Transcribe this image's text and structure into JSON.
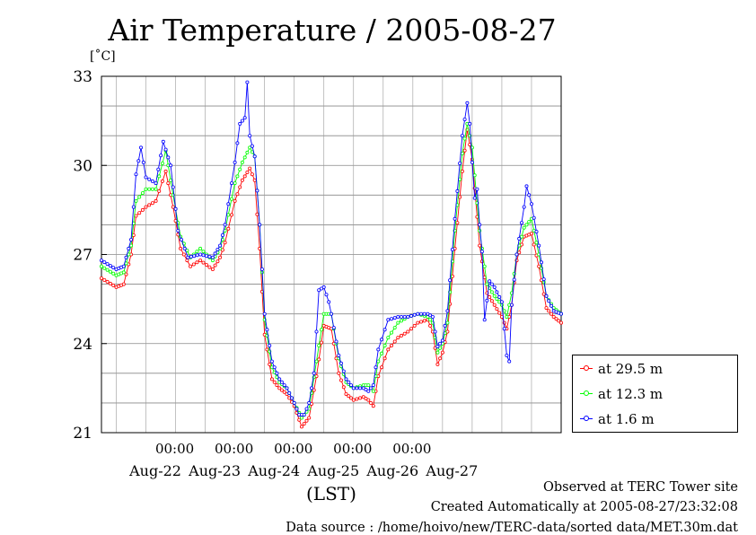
{
  "page": {
    "title": "Air Temperature / 2005-08-27",
    "unit_label": "[˚C]",
    "x_unit_label": "(LST)",
    "footer_line1": "Observed at TERC Tower site",
    "footer_line2": "Created Automatically at 2005-08-27/23:32:08",
    "footer_line3": "Data source : /home/hoivo/new/TERC-data/sorted data/MET.30m.dat"
  },
  "colors": {
    "series_29_5": "#ff0000",
    "series_12_3": "#00ff00",
    "series_1_6": "#0000ff"
  },
  "chart_data": {
    "type": "line",
    "title": "Air Temperature / 2005-08-27",
    "ylabel": "[˚C]",
    "xlabel": "(LST)",
    "ylim": [
      21,
      33
    ],
    "yticks": [
      21,
      24,
      27,
      30,
      33
    ],
    "x_time_tick_labels": [
      "00:00",
      "00:00",
      "00:00",
      "00:00",
      "00:00"
    ],
    "x_date_labels": [
      "Aug-22",
      "Aug-23",
      "Aug-24",
      "Aug-25",
      "Aug-26",
      "Aug-27"
    ],
    "grid": true,
    "legend_position": "bottom-right outside",
    "x_hours_from": "2005-08-21 06:00",
    "x_hours_to": "2005-08-28 00:00",
    "x_unit": "hours",
    "series": [
      {
        "name": "at 29.5 m",
        "color": "#ff0000",
        "points": [
          [
            0,
            26.2
          ],
          [
            6,
            25.9
          ],
          [
            9,
            26.0
          ],
          [
            12,
            27.0
          ],
          [
            14,
            28.3
          ],
          [
            18,
            28.6
          ],
          [
            22,
            28.8
          ],
          [
            26,
            29.8
          ],
          [
            29,
            28.6
          ],
          [
            32,
            27.2
          ],
          [
            36,
            26.6
          ],
          [
            40,
            26.8
          ],
          [
            45,
            26.5
          ],
          [
            48,
            26.9
          ],
          [
            50,
            27.4
          ],
          [
            54,
            28.8
          ],
          [
            57,
            29.5
          ],
          [
            60,
            29.9
          ],
          [
            62,
            29.5
          ],
          [
            64,
            27.2
          ],
          [
            66,
            24.3
          ],
          [
            69,
            22.8
          ],
          [
            72,
            22.5
          ],
          [
            75,
            22.3
          ],
          [
            78,
            21.9
          ],
          [
            81,
            21.2
          ],
          [
            84,
            21.5
          ],
          [
            87,
            22.9
          ],
          [
            90,
            24.6
          ],
          [
            93,
            24.5
          ],
          [
            96,
            23.0
          ],
          [
            99,
            22.3
          ],
          [
            102,
            22.1
          ],
          [
            106,
            22.2
          ],
          [
            108,
            22.1
          ],
          [
            110,
            21.9
          ],
          [
            112,
            22.9
          ],
          [
            116,
            23.8
          ],
          [
            120,
            24.2
          ],
          [
            124,
            24.4
          ],
          [
            128,
            24.7
          ],
          [
            132,
            24.8
          ],
          [
            134,
            24.4
          ],
          [
            136,
            23.3
          ],
          [
            138,
            23.7
          ],
          [
            140,
            24.4
          ],
          [
            143,
            27.2
          ],
          [
            146,
            29.8
          ],
          [
            148,
            31.2
          ],
          [
            150,
            30.2
          ],
          [
            153,
            27.3
          ],
          [
            156,
            25.7
          ],
          [
            159,
            25.3
          ],
          [
            162,
            24.9
          ],
          [
            164,
            24.5
          ],
          [
            166,
            25.3
          ],
          [
            168,
            26.8
          ],
          [
            171,
            27.6
          ],
          [
            174,
            27.7
          ],
          [
            177,
            26.6
          ],
          [
            180,
            25.2
          ],
          [
            183,
            24.9
          ],
          [
            186,
            24.7
          ]
        ]
      },
      {
        "name": "at 12.3 m",
        "color": "#00ff00",
        "points": [
          [
            0,
            26.6
          ],
          [
            6,
            26.3
          ],
          [
            9,
            26.4
          ],
          [
            12,
            27.3
          ],
          [
            14,
            28.8
          ],
          [
            18,
            29.2
          ],
          [
            22,
            29.2
          ],
          [
            26,
            30.5
          ],
          [
            29,
            29.0
          ],
          [
            32,
            27.6
          ],
          [
            36,
            26.9
          ],
          [
            40,
            27.2
          ],
          [
            45,
            26.8
          ],
          [
            48,
            27.2
          ],
          [
            50,
            27.8
          ],
          [
            54,
            29.4
          ],
          [
            57,
            30.1
          ],
          [
            60,
            30.6
          ],
          [
            62,
            30.3
          ],
          [
            64,
            28.0
          ],
          [
            66,
            24.8
          ],
          [
            69,
            23.2
          ],
          [
            72,
            22.7
          ],
          [
            75,
            22.5
          ],
          [
            78,
            22.0
          ],
          [
            81,
            21.5
          ],
          [
            84,
            21.8
          ],
          [
            87,
            23.4
          ],
          [
            90,
            25.0
          ],
          [
            93,
            25.0
          ],
          [
            96,
            23.5
          ],
          [
            99,
            22.7
          ],
          [
            102,
            22.5
          ],
          [
            106,
            22.6
          ],
          [
            108,
            22.6
          ],
          [
            110,
            22.4
          ],
          [
            112,
            23.4
          ],
          [
            116,
            24.2
          ],
          [
            120,
            24.7
          ],
          [
            124,
            24.9
          ],
          [
            128,
            25.0
          ],
          [
            132,
            24.9
          ],
          [
            134,
            24.7
          ],
          [
            136,
            23.7
          ],
          [
            138,
            24.0
          ],
          [
            140,
            24.7
          ],
          [
            143,
            27.8
          ],
          [
            146,
            30.4
          ],
          [
            148,
            31.4
          ],
          [
            150,
            30.6
          ],
          [
            153,
            27.8
          ],
          [
            156,
            26.0
          ],
          [
            159,
            25.6
          ],
          [
            162,
            25.3
          ],
          [
            164,
            24.9
          ],
          [
            166,
            25.7
          ],
          [
            168,
            27.0
          ],
          [
            171,
            27.9
          ],
          [
            174,
            28.2
          ],
          [
            177,
            27.0
          ],
          [
            180,
            25.6
          ],
          [
            183,
            25.2
          ],
          [
            186,
            25.0
          ]
        ]
      },
      {
        "name": "at 1.6 m",
        "color": "#0000ff",
        "points": [
          [
            0,
            26.8
          ],
          [
            6,
            26.5
          ],
          [
            9,
            26.6
          ],
          [
            12,
            27.5
          ],
          [
            14,
            29.7
          ],
          [
            16,
            30.6
          ],
          [
            18,
            29.6
          ],
          [
            22,
            29.4
          ],
          [
            25,
            30.8
          ],
          [
            28,
            30.0
          ],
          [
            31,
            27.8
          ],
          [
            35,
            26.9
          ],
          [
            40,
            27.0
          ],
          [
            45,
            26.9
          ],
          [
            48,
            27.3
          ],
          [
            50,
            28.0
          ],
          [
            54,
            30.1
          ],
          [
            56,
            31.4
          ],
          [
            58,
            31.6
          ],
          [
            59,
            32.8
          ],
          [
            60,
            31.0
          ],
          [
            62,
            30.3
          ],
          [
            64,
            28.0
          ],
          [
            66,
            25.0
          ],
          [
            69,
            23.4
          ],
          [
            72,
            22.8
          ],
          [
            75,
            22.5
          ],
          [
            78,
            22.0
          ],
          [
            80,
            21.6
          ],
          [
            82,
            21.6
          ],
          [
            84,
            22.0
          ],
          [
            86,
            23.0
          ],
          [
            88,
            25.8
          ],
          [
            90,
            25.9
          ],
          [
            92,
            25.4
          ],
          [
            93,
            25.0
          ],
          [
            96,
            23.6
          ],
          [
            99,
            22.8
          ],
          [
            102,
            22.5
          ],
          [
            106,
            22.5
          ],
          [
            108,
            22.4
          ],
          [
            110,
            22.6
          ],
          [
            112,
            23.8
          ],
          [
            116,
            24.8
          ],
          [
            120,
            24.9
          ],
          [
            124,
            24.9
          ],
          [
            128,
            25.0
          ],
          [
            132,
            25.0
          ],
          [
            134,
            24.9
          ],
          [
            136,
            23.9
          ],
          [
            138,
            24.1
          ],
          [
            140,
            25.1
          ],
          [
            143,
            28.2
          ],
          [
            146,
            31.0
          ],
          [
            148,
            32.1
          ],
          [
            149,
            31.4
          ],
          [
            150,
            30.1
          ],
          [
            151,
            28.9
          ],
          [
            152,
            29.2
          ],
          [
            153,
            28.0
          ],
          [
            154,
            27.1
          ],
          [
            155,
            24.8
          ],
          [
            157,
            26.1
          ],
          [
            159,
            25.9
          ],
          [
            162,
            25.4
          ],
          [
            164,
            23.6
          ],
          [
            165,
            23.4
          ],
          [
            166,
            25.3
          ],
          [
            168,
            27.0
          ],
          [
            171,
            28.6
          ],
          [
            172,
            29.3
          ],
          [
            174,
            28.7
          ],
          [
            177,
            27.3
          ],
          [
            180,
            25.6
          ],
          [
            183,
            25.1
          ],
          [
            186,
            25.0
          ]
        ]
      }
    ]
  }
}
